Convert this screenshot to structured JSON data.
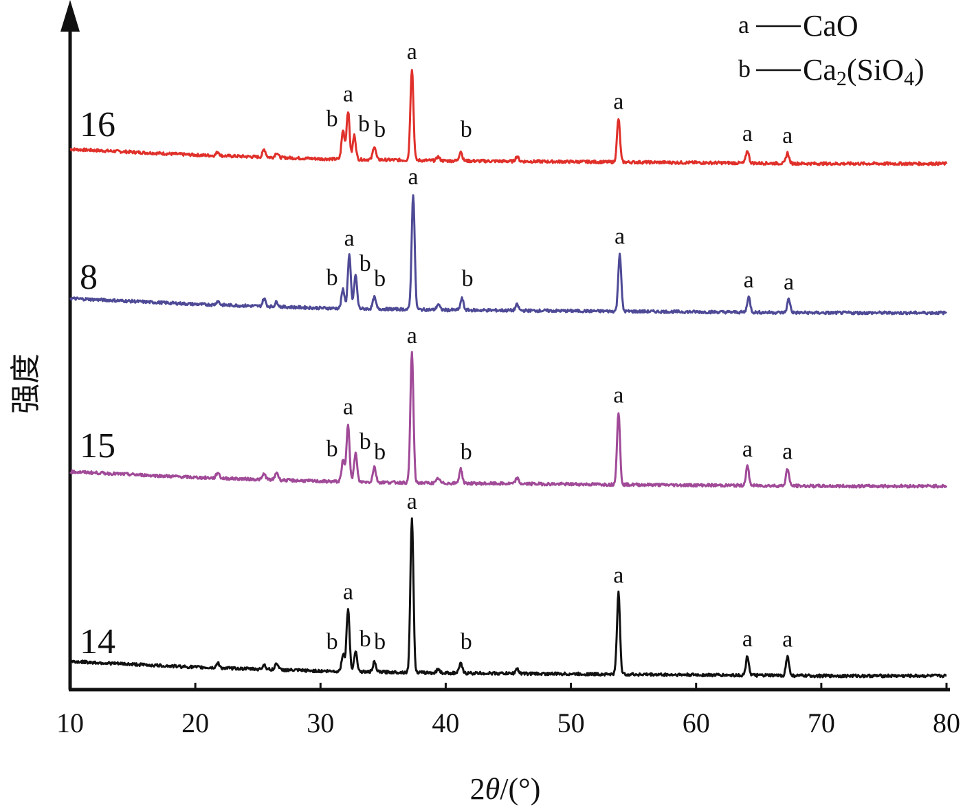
{
  "chart_data": {
    "type": "line",
    "xlabel_prefix": "2",
    "xlabel_theta": "θ",
    "xlabel_suffix": "/(°)",
    "ylabel": "强度",
    "xlim": [
      10,
      80
    ],
    "x_ticks": [
      10,
      20,
      30,
      40,
      50,
      60,
      70,
      80
    ],
    "grid": false,
    "legend": [
      {
        "key": "a",
        "text": "CaO"
      },
      {
        "key": "b",
        "text": "Ca",
        "sub1": "2",
        "mid": "(SiO",
        "sub2": "4",
        "end": ")"
      }
    ],
    "series": [
      {
        "name": "16",
        "color": "#e0302a",
        "baseline": [
          [
            10,
            0.15
          ],
          [
            15,
            0.12
          ],
          [
            20,
            0.09
          ],
          [
            30,
            0.05
          ],
          [
            40,
            0.03
          ],
          [
            50,
            0.02
          ],
          [
            60,
            0.01
          ],
          [
            70,
            0.0
          ],
          [
            80,
            0.0
          ]
        ],
        "peaks": [
          {
            "x": 21.8,
            "h": 0.04,
            "label": ""
          },
          {
            "x": 25.5,
            "h": 0.08,
            "label": ""
          },
          {
            "x": 26.5,
            "h": 0.05,
            "label": ""
          },
          {
            "x": 31.8,
            "h": 0.3,
            "label": "b"
          },
          {
            "x": 32.2,
            "h": 0.5,
            "label": "a"
          },
          {
            "x": 32.7,
            "h": 0.25,
            "label": "b"
          },
          {
            "x": 34.3,
            "h": 0.14,
            "label": "b"
          },
          {
            "x": 37.3,
            "h": 0.95,
            "label": "a"
          },
          {
            "x": 39.4,
            "h": 0.04,
            "label": ""
          },
          {
            "x": 41.2,
            "h": 0.1,
            "label": "b"
          },
          {
            "x": 45.7,
            "h": 0.05,
            "label": ""
          },
          {
            "x": 53.8,
            "h": 0.45,
            "label": "a"
          },
          {
            "x": 64.1,
            "h": 0.13,
            "label": "a"
          },
          {
            "x": 67.3,
            "h": 0.11,
            "label": "a"
          }
        ]
      },
      {
        "name": "8",
        "color": "#4e4a96",
        "baseline": [
          [
            10,
            0.15
          ],
          [
            15,
            0.12
          ],
          [
            20,
            0.09
          ],
          [
            30,
            0.05
          ],
          [
            40,
            0.03
          ],
          [
            50,
            0.02
          ],
          [
            60,
            0.01
          ],
          [
            70,
            0.0
          ],
          [
            80,
            0.0
          ]
        ],
        "peaks": [
          {
            "x": 21.8,
            "h": 0.04,
            "label": ""
          },
          {
            "x": 25.5,
            "h": 0.08,
            "label": ""
          },
          {
            "x": 26.5,
            "h": 0.05,
            "label": ""
          },
          {
            "x": 31.8,
            "h": 0.2,
            "label": "b"
          },
          {
            "x": 32.3,
            "h": 0.55,
            "label": "a"
          },
          {
            "x": 32.8,
            "h": 0.35,
            "label": "b"
          },
          {
            "x": 34.3,
            "h": 0.12,
            "label": "b"
          },
          {
            "x": 37.4,
            "h": 1.2,
            "label": "a"
          },
          {
            "x": 39.4,
            "h": 0.06,
            "label": ""
          },
          {
            "x": 41.3,
            "h": 0.12,
            "label": "b"
          },
          {
            "x": 45.7,
            "h": 0.06,
            "label": ""
          },
          {
            "x": 53.9,
            "h": 0.6,
            "label": "a"
          },
          {
            "x": 64.2,
            "h": 0.16,
            "label": "a"
          },
          {
            "x": 67.4,
            "h": 0.14,
            "label": "a"
          }
        ]
      },
      {
        "name": "15",
        "color": "#a04a98",
        "baseline": [
          [
            10,
            0.15
          ],
          [
            15,
            0.12
          ],
          [
            20,
            0.09
          ],
          [
            30,
            0.05
          ],
          [
            40,
            0.03
          ],
          [
            50,
            0.02
          ],
          [
            60,
            0.01
          ],
          [
            70,
            0.0
          ],
          [
            80,
            0.0
          ]
        ],
        "peaks": [
          {
            "x": 21.8,
            "h": 0.06,
            "label": ""
          },
          {
            "x": 25.5,
            "h": 0.06,
            "label": ""
          },
          {
            "x": 26.5,
            "h": 0.08,
            "label": ""
          },
          {
            "x": 31.8,
            "h": 0.22,
            "label": "b"
          },
          {
            "x": 32.2,
            "h": 0.6,
            "label": "a"
          },
          {
            "x": 32.8,
            "h": 0.3,
            "label": "b"
          },
          {
            "x": 34.3,
            "h": 0.16,
            "label": "b"
          },
          {
            "x": 37.3,
            "h": 1.35,
            "label": "a"
          },
          {
            "x": 39.4,
            "h": 0.05,
            "label": ""
          },
          {
            "x": 41.2,
            "h": 0.15,
            "label": "b"
          },
          {
            "x": 45.7,
            "h": 0.06,
            "label": ""
          },
          {
            "x": 53.8,
            "h": 0.75,
            "label": "a"
          },
          {
            "x": 64.1,
            "h": 0.2,
            "label": "a"
          },
          {
            "x": 67.3,
            "h": 0.18,
            "label": "a"
          }
        ]
      },
      {
        "name": "14",
        "color": "#111111",
        "baseline": [
          [
            10,
            0.15
          ],
          [
            15,
            0.12
          ],
          [
            20,
            0.09
          ],
          [
            30,
            0.05
          ],
          [
            40,
            0.03
          ],
          [
            50,
            0.02
          ],
          [
            60,
            0.01
          ],
          [
            70,
            0.0
          ],
          [
            80,
            0.0
          ]
        ],
        "peaks": [
          {
            "x": 21.8,
            "h": 0.05,
            "label": ""
          },
          {
            "x": 25.5,
            "h": 0.05,
            "label": ""
          },
          {
            "x": 26.5,
            "h": 0.07,
            "label": ""
          },
          {
            "x": 31.8,
            "h": 0.18,
            "label": "b"
          },
          {
            "x": 32.2,
            "h": 0.65,
            "label": "a"
          },
          {
            "x": 32.8,
            "h": 0.22,
            "label": "b"
          },
          {
            "x": 34.3,
            "h": 0.1,
            "label": "b"
          },
          {
            "x": 37.3,
            "h": 1.6,
            "label": "a"
          },
          {
            "x": 39.4,
            "h": 0.04,
            "label": ""
          },
          {
            "x": 41.2,
            "h": 0.1,
            "label": "b"
          },
          {
            "x": 45.7,
            "h": 0.05,
            "label": ""
          },
          {
            "x": 53.8,
            "h": 0.85,
            "label": "a"
          },
          {
            "x": 64.1,
            "h": 0.2,
            "label": "a"
          },
          {
            "x": 67.3,
            "h": 0.2,
            "label": "a"
          }
        ]
      }
    ]
  }
}
